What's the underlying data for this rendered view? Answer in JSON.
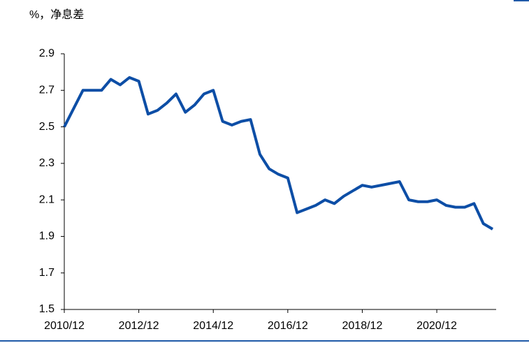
{
  "chart_data": {
    "type": "line",
    "title": "%，净息差",
    "categories": [
      "2010/12",
      null,
      null,
      null,
      null,
      null,
      null,
      null,
      "2012/12",
      null,
      null,
      null,
      null,
      null,
      null,
      null,
      "2014/12",
      null,
      null,
      null,
      null,
      null,
      null,
      null,
      "2016/12",
      null,
      null,
      null,
      null,
      null,
      null,
      null,
      "2018/12",
      null,
      null,
      null,
      null,
      null,
      null,
      null,
      "2020/12",
      null,
      null,
      null,
      null,
      null,
      null
    ],
    "values": [
      2.5,
      2.6,
      2.7,
      2.7,
      2.7,
      2.76,
      2.73,
      2.77,
      2.75,
      2.57,
      2.59,
      2.63,
      2.68,
      2.58,
      2.62,
      2.68,
      2.7,
      2.53,
      2.51,
      2.53,
      2.54,
      2.35,
      2.27,
      2.24,
      2.22,
      2.03,
      2.05,
      2.07,
      2.1,
      2.08,
      2.12,
      2.15,
      2.18,
      2.17,
      2.18,
      2.19,
      2.2,
      2.1,
      2.09,
      2.09,
      2.1,
      2.07,
      2.06,
      2.06,
      2.08,
      1.97,
      1.94
    ],
    "color": "#0d4ea6",
    "ylim": [
      1.5,
      2.9
    ],
    "yticks": [
      1.5,
      1.7,
      1.9,
      2.1,
      2.3,
      2.5,
      2.7,
      2.9
    ],
    "grid": false
  }
}
